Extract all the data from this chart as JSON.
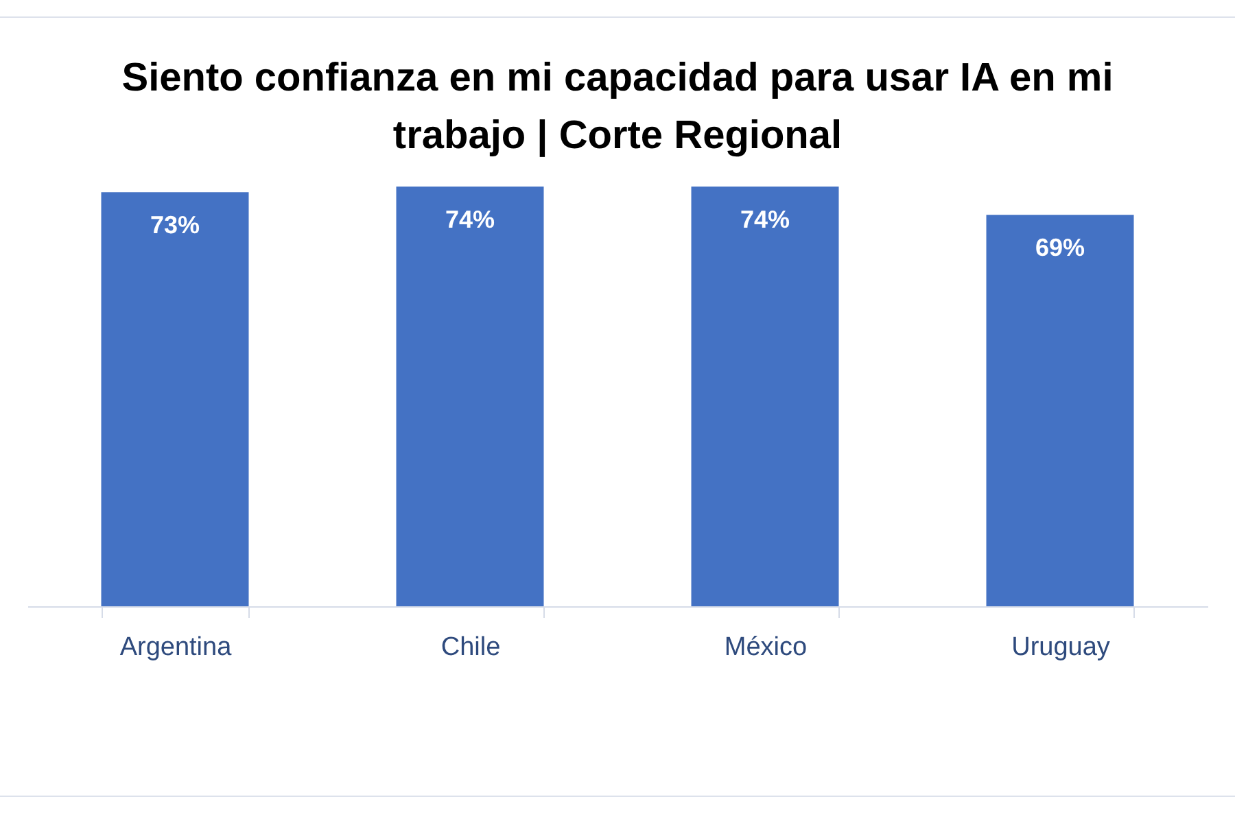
{
  "chart_data": {
    "type": "bar",
    "title": "Siento confianza en mi capacidad para usar IA en mi trabajo | Corte Regional",
    "categories": [
      "Argentina",
      "Chile",
      "México",
      "Uruguay"
    ],
    "values": [
      73,
      74,
      74,
      69
    ],
    "value_labels": [
      "73%",
      "74%",
      "74%",
      "69%"
    ],
    "color": "#4472c4"
  }
}
